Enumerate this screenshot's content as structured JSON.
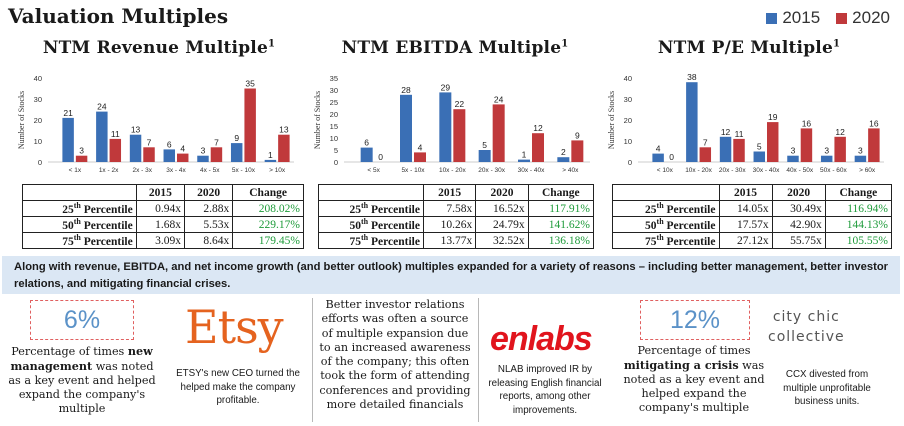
{
  "header": {
    "title": "Valuation Multiples"
  },
  "legend": [
    {
      "label": "2015",
      "color": "#3a6fb5"
    },
    {
      "label": "2020",
      "color": "#c0393b"
    }
  ],
  "chart_data": [
    {
      "type": "bar",
      "title": "NTM Revenue Multiple",
      "title_sup": "1",
      "ylabel": "Number of Stocks",
      "ylim": [
        0,
        40
      ],
      "yticks": [
        0,
        10,
        20,
        30,
        40
      ],
      "categories": [
        "< 1x",
        "1x - 2x",
        "2x - 3x",
        "3x - 4x",
        "4x - 5x",
        "5x - 10x",
        "> 10x"
      ],
      "series": [
        {
          "name": "2015",
          "values": [
            21,
            24,
            13,
            6,
            3,
            9,
            1
          ]
        },
        {
          "name": "2020",
          "values": [
            3,
            11,
            7,
            4,
            7,
            35,
            13
          ]
        }
      ],
      "table": {
        "headers": [
          "2015",
          "2020",
          "Change"
        ],
        "rows": [
          {
            "label": "25",
            "suffix": "th",
            "rest": " Percentile",
            "v1": "0.94x",
            "v2": "2.88x",
            "chg": "208.02%"
          },
          {
            "label": "50",
            "suffix": "th",
            "rest": " Percentile",
            "v1": "1.68x",
            "v2": "5.53x",
            "chg": "229.17%"
          },
          {
            "label": "75",
            "suffix": "th",
            "rest": " Percentile",
            "v1": "3.09x",
            "v2": "8.64x",
            "chg": "179.45%"
          }
        ]
      }
    },
    {
      "type": "bar",
      "title": "NTM EBITDA Multiple",
      "title_sup": "1",
      "ylabel": "Number of Stocks",
      "ylim": [
        0,
        35
      ],
      "yticks": [
        0,
        5,
        10,
        15,
        20,
        25,
        30,
        35
      ],
      "categories": [
        "< 5x",
        "5x - 10x",
        "10x - 20x",
        "20x - 30x",
        "30x - 40x",
        "> 40x"
      ],
      "series": [
        {
          "name": "2015",
          "values": [
            6,
            28,
            29,
            5,
            1,
            2
          ]
        },
        {
          "name": "2020",
          "values": [
            0,
            4,
            22,
            24,
            12,
            9
          ]
        }
      ],
      "table": {
        "headers": [
          "2015",
          "2020",
          "Change"
        ],
        "rows": [
          {
            "label": "25",
            "suffix": "th",
            "rest": " Percentile",
            "v1": "7.58x",
            "v2": "16.52x",
            "chg": "117.91%"
          },
          {
            "label": "50",
            "suffix": "th",
            "rest": " Percentile",
            "v1": "10.26x",
            "v2": "24.79x",
            "chg": "141.62%"
          },
          {
            "label": "75",
            "suffix": "th",
            "rest": " Percentile",
            "v1": "13.77x",
            "v2": "32.52x",
            "chg": "136.18%"
          }
        ]
      }
    },
    {
      "type": "bar",
      "title": "NTM P/E Multiple",
      "title_sup": "1",
      "ylabel": "Number of Stocks",
      "ylim": [
        0,
        40
      ],
      "yticks": [
        0,
        10,
        20,
        30,
        40
      ],
      "categories": [
        "< 10x",
        "10x - 20x",
        "20x - 30x",
        "30x - 40x",
        "40x - 50x",
        "50x - 60x",
        "> 60x"
      ],
      "series": [
        {
          "name": "2015",
          "values": [
            4,
            38,
            12,
            5,
            3,
            3,
            3
          ]
        },
        {
          "name": "2020",
          "values": [
            0,
            7,
            11,
            19,
            16,
            12,
            16
          ]
        }
      ],
      "table": {
        "headers": [
          "2015",
          "2020",
          "Change"
        ],
        "rows": [
          {
            "label": "25",
            "suffix": "th",
            "rest": " Percentile",
            "v1": "14.05x",
            "v2": "30.49x",
            "chg": "116.94%"
          },
          {
            "label": "50",
            "suffix": "th",
            "rest": " Percentile",
            "v1": "17.57x",
            "v2": "42.90x",
            "chg": "144.13%"
          },
          {
            "label": "75",
            "suffix": "th",
            "rest": " Percentile",
            "v1": "27.12x",
            "v2": "55.75x",
            "chg": "105.55%"
          }
        ]
      }
    }
  ],
  "banner": {
    "text": "Along with revenue, EBITDA, and net income growth (and better outlook) multiples expanded for a variety of reasons – including better management, better investor relations, and mitigating financial crises."
  },
  "bottom": {
    "stat1": {
      "value": "6%",
      "text_pre": "Percentage of times ",
      "text_bold": "new management",
      "text_post": " was noted as a key event and helped expand the company's multiple"
    },
    "etsy": {
      "logo": "Etsy",
      "caption": "ETSY's new CEO turned the helped make the company profitable."
    },
    "ir_text": "Better investor relations efforts was often a source of multiple expansion due to an increased awareness of the company; this often took the form of attending conferences and providing more detailed financials",
    "enlabs": {
      "logo": "enlabs",
      "caption": "NLAB improved IR by releasing English financial reports, among other improvements."
    },
    "stat2": {
      "value": "12%",
      "text_pre": "Percentage of times ",
      "text_bold": "mitigating a crisis",
      "text_post": " was noted as a key event and helped expand the company's multiple"
    },
    "citychic": {
      "logo_line1": "city chic",
      "logo_line2": "collective",
      "caption": "CCX divested from multiple unprofitable business units."
    }
  }
}
